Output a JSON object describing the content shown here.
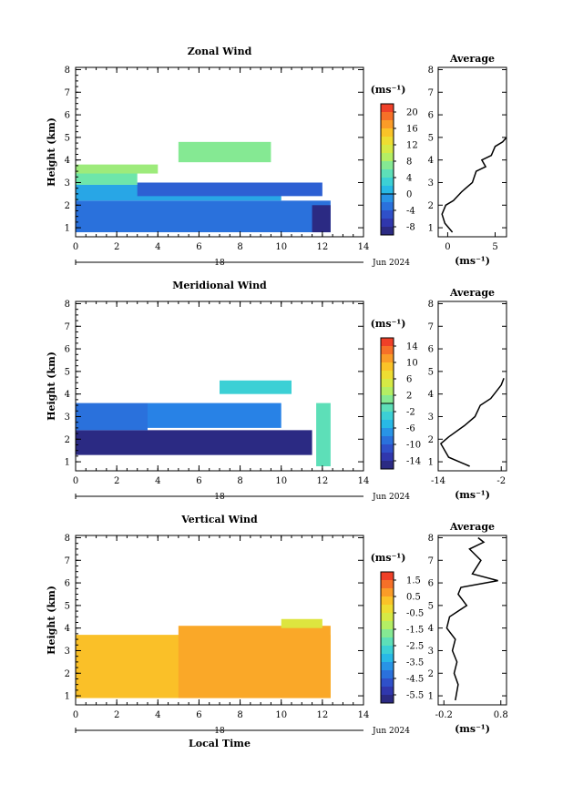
{
  "figure": {
    "time_axis_label": "Local Time",
    "date_label": "Jun 2024",
    "day_label": "18"
  },
  "chart_data": [
    {
      "id": "zonal",
      "type": "heatmap",
      "title": "Zonal Wind",
      "ylabel": "Height (km)",
      "xlim": [
        0,
        14
      ],
      "ylim": [
        0.6,
        8.1
      ],
      "x_ticks": [
        "0",
        "2",
        "4",
        "6",
        "8",
        "10",
        "12",
        "14"
      ],
      "y_ticks": [
        "1",
        "2",
        "3",
        "4",
        "5",
        "6",
        "7",
        "8"
      ],
      "colorbar": {
        "unit": "(ms⁻¹)",
        "ticks": [
          "20",
          "16",
          "12",
          "8",
          "4",
          "0",
          "-4",
          "-8"
        ],
        "range": [
          -10,
          22
        ],
        "line_at": 0
      },
      "regions": [
        {
          "x0": 0,
          "x1": 12.4,
          "y0": 0.8,
          "y1": 2.2,
          "value": -3
        },
        {
          "x0": 0,
          "x1": 10,
          "y0": 2.2,
          "y1": 2.9,
          "value": 0
        },
        {
          "x0": 0,
          "x1": 3,
          "y0": 2.9,
          "y1": 3.6,
          "value": 6
        },
        {
          "x0": 3,
          "x1": 12,
          "y0": 2.4,
          "y1": 3.0,
          "value": -4
        },
        {
          "x0": 11.5,
          "x1": 12.4,
          "y0": 0.8,
          "y1": 2.0,
          "value": -9
        },
        {
          "x0": 0,
          "x1": 4,
          "y0": 3.4,
          "y1": 3.8,
          "value": 8
        },
        {
          "x0": 5,
          "x1": 9.5,
          "y0": 3.9,
          "y1": 4.8,
          "value": 7
        }
      ],
      "profile": {
        "title": "Average",
        "xlabel": "(ms⁻¹)",
        "x_ticks": [
          "0",
          "5"
        ],
        "xlim": [
          -1,
          6.2
        ],
        "points": [
          [
            0.5,
            0.8
          ],
          [
            -0.3,
            1.2
          ],
          [
            -0.6,
            1.6
          ],
          [
            -0.2,
            2.0
          ],
          [
            0.6,
            2.2
          ],
          [
            1.5,
            2.6
          ],
          [
            2.6,
            3.0
          ],
          [
            3.0,
            3.5
          ],
          [
            4.0,
            3.7
          ],
          [
            3.6,
            4.0
          ],
          [
            4.6,
            4.2
          ],
          [
            5.0,
            4.6
          ],
          [
            5.8,
            4.8
          ],
          [
            6.2,
            5.0
          ]
        ]
      }
    },
    {
      "id": "meridional",
      "type": "heatmap",
      "title": "Meridional Wind",
      "ylabel": "Height (km)",
      "xlim": [
        0,
        14
      ],
      "ylim": [
        0.6,
        8.1
      ],
      "x_ticks": [
        "0",
        "2",
        "4",
        "6",
        "8",
        "10",
        "12",
        "14"
      ],
      "y_ticks": [
        "1",
        "2",
        "3",
        "4",
        "5",
        "6",
        "7",
        "8"
      ],
      "colorbar": {
        "unit": "(ms⁻¹)",
        "ticks": [
          "14",
          "10",
          "6",
          "2",
          "-2",
          "-6",
          "-10",
          "-14"
        ],
        "range": [
          -16,
          16
        ],
        "line_at": 0
      },
      "regions": [
        {
          "x0": 0,
          "x1": 11.5,
          "y0": 1.3,
          "y1": 2.4,
          "value": -15
        },
        {
          "x0": 0,
          "x1": 3.5,
          "y0": 2.4,
          "y1": 3.6,
          "value": -9
        },
        {
          "x0": 3.5,
          "x1": 10,
          "y0": 2.5,
          "y1": 3.6,
          "value": -8
        },
        {
          "x0": 7,
          "x1": 10.5,
          "y0": 4.0,
          "y1": 4.6,
          "value": -3
        },
        {
          "x0": 11.7,
          "x1": 12.4,
          "y0": 0.8,
          "y1": 3.6,
          "value": -1
        }
      ],
      "profile": {
        "title": "Average",
        "xlabel": "(ms⁻¹)",
        "x_ticks": [
          "-14",
          "-2"
        ],
        "xlim": [
          -14,
          -1
        ],
        "points": [
          [
            -8,
            0.8
          ],
          [
            -12,
            1.2
          ],
          [
            -13.5,
            1.8
          ],
          [
            -12,
            2.1
          ],
          [
            -9,
            2.6
          ],
          [
            -7,
            3.0
          ],
          [
            -6,
            3.5
          ],
          [
            -4,
            3.8
          ],
          [
            -3,
            4.1
          ],
          [
            -2,
            4.4
          ],
          [
            -1.5,
            4.7
          ]
        ]
      }
    },
    {
      "id": "vertical",
      "type": "heatmap",
      "title": "Vertical Wind",
      "ylabel": "Height (km)",
      "xlabel": "Local Time",
      "xlim": [
        0,
        14
      ],
      "ylim": [
        0.6,
        8.1
      ],
      "x_ticks": [
        "0",
        "2",
        "4",
        "6",
        "8",
        "10",
        "12",
        "14"
      ],
      "y_ticks": [
        "1",
        "2",
        "3",
        "4",
        "5",
        "6",
        "7",
        "8"
      ],
      "colorbar": {
        "unit": "(ms⁻¹)",
        "ticks": [
          "1.5",
          "0.5",
          "-0.5",
          "-1.5",
          "-2.5",
          "-3.5",
          "-4.5",
          "-5.5"
        ],
        "range": [
          -6,
          2
        ]
      },
      "regions": [
        {
          "x0": 0,
          "x1": 12.4,
          "y0": 0.9,
          "y1": 3.7,
          "value": 0.3
        },
        {
          "x0": 5,
          "x1": 12.4,
          "y0": 0.9,
          "y1": 4.1,
          "value": 0.6
        },
        {
          "x0": 10,
          "x1": 12,
          "y0": 4.0,
          "y1": 4.4,
          "value": -0.6
        }
      ],
      "profile": {
        "title": "Average",
        "xlabel": "(ms⁻¹)",
        "x_ticks": [
          "-0.2",
          "0.8"
        ],
        "xlim": [
          -0.3,
          0.9
        ],
        "points": [
          [
            0.0,
            0.8
          ],
          [
            0.05,
            1.5
          ],
          [
            -0.02,
            2.0
          ],
          [
            0.03,
            2.5
          ],
          [
            -0.05,
            3.0
          ],
          [
            0.0,
            3.5
          ],
          [
            -0.15,
            4.0
          ],
          [
            -0.1,
            4.5
          ],
          [
            0.2,
            5.0
          ],
          [
            0.05,
            5.5
          ],
          [
            0.1,
            5.8
          ],
          [
            0.75,
            6.1
          ],
          [
            0.3,
            6.4
          ],
          [
            0.45,
            7.0
          ],
          [
            0.25,
            7.5
          ],
          [
            0.5,
            7.8
          ],
          [
            0.4,
            8.0
          ]
        ]
      }
    }
  ]
}
